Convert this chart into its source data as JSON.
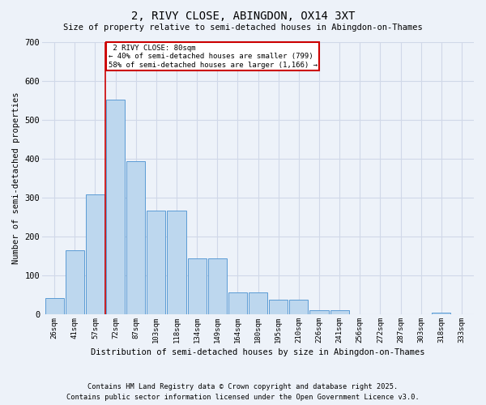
{
  "title": "2, RIVY CLOSE, ABINGDON, OX14 3XT",
  "subtitle": "Size of property relative to semi-detached houses in Abingdon-on-Thames",
  "xlabel": "Distribution of semi-detached houses by size in Abingdon-on-Thames",
  "ylabel": "Number of semi-detached properties",
  "categories": [
    "26sqm",
    "41sqm",
    "57sqm",
    "72sqm",
    "87sqm",
    "103sqm",
    "118sqm",
    "134sqm",
    "149sqm",
    "164sqm",
    "180sqm",
    "195sqm",
    "210sqm",
    "226sqm",
    "241sqm",
    "256sqm",
    "272sqm",
    "287sqm",
    "303sqm",
    "318sqm",
    "333sqm"
  ],
  "values": [
    42,
    165,
    308,
    552,
    393,
    267,
    267,
    143,
    143,
    57,
    57,
    37,
    37,
    10,
    10,
    0,
    0,
    0,
    0,
    5,
    0
  ],
  "bar_color": "#bdd7ee",
  "bar_edge_color": "#5b9bd5",
  "property_label": "2 RIVY CLOSE: 80sqm",
  "pct_smaller": 40,
  "pct_larger": 58,
  "n_smaller": 799,
  "n_larger": 1166,
  "vline_x": 2.5,
  "ylim": [
    0,
    700
  ],
  "yticks": [
    0,
    100,
    200,
    300,
    400,
    500,
    600,
    700
  ],
  "annotation_box_color": "#ffffff",
  "annotation_box_edge": "#cc0000",
  "vline_color": "#cc0000",
  "grid_color": "#d0d8e8",
  "bg_color": "#edf2f9",
  "footer1": "Contains HM Land Registry data © Crown copyright and database right 2025.",
  "footer2": "Contains public sector information licensed under the Open Government Licence v3.0."
}
